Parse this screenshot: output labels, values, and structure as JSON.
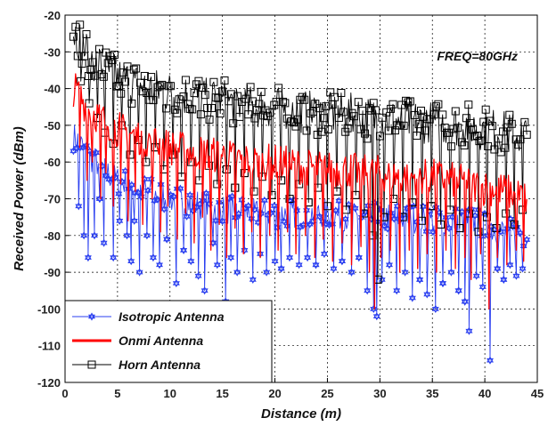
{
  "chart_data": {
    "type": "line",
    "title": "",
    "annotation": "FREQ=80GHz",
    "xlabel": "Distance (m)",
    "ylabel": "Received Power (dBm)",
    "xlim": [
      0,
      45
    ],
    "ylim": [
      -120,
      -20
    ],
    "xticks": [
      0,
      5,
      10,
      15,
      20,
      25,
      30,
      35,
      40,
      45
    ],
    "yticks": [
      -20,
      -30,
      -40,
      -50,
      -60,
      -70,
      -80,
      -90,
      -100,
      -110,
      -120
    ],
    "grid": "dashed",
    "legend_position": "bottom-left",
    "series": [
      {
        "name": "Isotropic Antenna",
        "color": "#2a3ff0",
        "marker": "hexagram",
        "x": [
          0.8,
          1.5,
          2.0,
          3.0,
          4.0,
          5.0,
          6.0,
          7.0,
          8.0,
          10.0,
          12.0,
          14.0,
          15.0,
          16.0,
          18.0,
          20.0,
          22.0,
          25.0,
          27.0,
          29.0,
          30.0,
          32.0,
          35.0,
          37.0,
          38.5,
          40.0,
          40.5,
          42.0,
          44.0
        ],
        "y": [
          -53,
          -55,
          -58,
          -60,
          -63,
          -65,
          -66,
          -67,
          -68,
          -70,
          -71,
          -72,
          -73,
          -73,
          -74,
          -74,
          -74,
          -74,
          -75,
          -75,
          -75,
          -75,
          -76,
          -76,
          -76,
          -77,
          -78,
          -79,
          -80
        ],
        "dips": [
          [
            1.3,
            -72
          ],
          [
            1.8,
            -80
          ],
          [
            2.2,
            -86
          ],
          [
            2.8,
            -80
          ],
          [
            3.3,
            -70
          ],
          [
            3.7,
            -82
          ],
          [
            4.6,
            -86
          ],
          [
            5.2,
            -76
          ],
          [
            5.9,
            -80
          ],
          [
            6.3,
            -87
          ],
          [
            6.6,
            -76
          ],
          [
            7.1,
            -90
          ],
          [
            7.8,
            -80
          ],
          [
            8.4,
            -86
          ],
          [
            9.0,
            -88
          ],
          [
            9.7,
            -81
          ],
          [
            10.6,
            -93
          ],
          [
            11.3,
            -84
          ],
          [
            12.0,
            -87
          ],
          [
            12.7,
            -91
          ],
          [
            13.3,
            -95
          ],
          [
            14.1,
            -82
          ],
          [
            14.5,
            -88
          ],
          [
            15.3,
            -98
          ],
          [
            15.8,
            -86
          ],
          [
            16.4,
            -90
          ],
          [
            17.1,
            -84
          ],
          [
            17.9,
            -92
          ],
          [
            18.6,
            -85
          ],
          [
            19.2,
            -90
          ],
          [
            20.0,
            -87
          ],
          [
            20.6,
            -89
          ],
          [
            21.4,
            -86
          ],
          [
            22.3,
            -88
          ],
          [
            23.1,
            -86
          ],
          [
            23.9,
            -88
          ],
          [
            24.7,
            -85
          ],
          [
            25.6,
            -89
          ],
          [
            26.4,
            -87
          ],
          [
            27.3,
            -90
          ],
          [
            28.0,
            -86
          ],
          [
            28.8,
            -95
          ],
          [
            29.4,
            -100
          ],
          [
            29.7,
            -102
          ],
          [
            30.2,
            -92
          ],
          [
            30.9,
            -88
          ],
          [
            31.6,
            -95
          ],
          [
            32.4,
            -90
          ],
          [
            33.1,
            -97
          ],
          [
            33.8,
            -92
          ],
          [
            34.5,
            -96
          ],
          [
            35.3,
            -100
          ],
          [
            36.0,
            -93
          ],
          [
            36.8,
            -90
          ],
          [
            37.5,
            -95
          ],
          [
            38.1,
            -98
          ],
          [
            38.5,
            -106
          ],
          [
            39.2,
            -91
          ],
          [
            39.8,
            -94
          ],
          [
            40.5,
            -114
          ],
          [
            41.2,
            -89
          ],
          [
            41.8,
            -92
          ],
          [
            42.4,
            -88
          ],
          [
            43.0,
            -91
          ],
          [
            43.6,
            -89
          ]
        ]
      },
      {
        "name": "Onmi Antenna",
        "color": "#ff0000",
        "marker": "none",
        "x": [
          0.8,
          1.5,
          2.0,
          3.0,
          4.0,
          5.0,
          6.0,
          7.0,
          8.0,
          10.0,
          12.0,
          14.0,
          15.0,
          16.0,
          18.0,
          20.0,
          22.0,
          25.0,
          27.0,
          29.0,
          30.0,
          32.0,
          35.0,
          37.0,
          38.5,
          40.0,
          40.5,
          42.0,
          44.0
        ],
        "y": [
          -40,
          -42,
          -45,
          -47,
          -49,
          -51,
          -52,
          -53,
          -54,
          -56,
          -57,
          -58,
          -58,
          -59,
          -60,
          -60,
          -61,
          -62,
          -62,
          -63,
          -63,
          -64,
          -64,
          -65,
          -66,
          -67,
          -67,
          -68,
          -70
        ],
        "dips": [
          [
            1.4,
            -56
          ],
          [
            2.1,
            -65
          ],
          [
            2.6,
            -60
          ],
          [
            3.4,
            -70
          ],
          [
            3.9,
            -63
          ],
          [
            4.6,
            -72
          ],
          [
            5.3,
            -66
          ],
          [
            6.0,
            -76
          ],
          [
            6.7,
            -68
          ],
          [
            7.4,
            -77
          ],
          [
            8.3,
            -70
          ],
          [
            9.1,
            -79
          ],
          [
            9.8,
            -72
          ],
          [
            10.7,
            -81
          ],
          [
            11.5,
            -74
          ],
          [
            12.3,
            -82
          ],
          [
            13.1,
            -75
          ],
          [
            13.9,
            -84
          ],
          [
            14.7,
            -77
          ],
          [
            15.4,
            -86
          ],
          [
            16.2,
            -78
          ],
          [
            17.0,
            -85
          ],
          [
            17.8,
            -79
          ],
          [
            18.6,
            -86
          ],
          [
            19.5,
            -80
          ],
          [
            20.3,
            -84
          ],
          [
            21.2,
            -79
          ],
          [
            22.0,
            -85
          ],
          [
            22.9,
            -80
          ],
          [
            23.8,
            -86
          ],
          [
            24.6,
            -81
          ],
          [
            25.5,
            -87
          ],
          [
            26.4,
            -82
          ],
          [
            27.3,
            -88
          ],
          [
            28.2,
            -83
          ],
          [
            29.0,
            -90
          ],
          [
            29.5,
            -100
          ],
          [
            30.1,
            -86
          ],
          [
            31.0,
            -84
          ],
          [
            31.9,
            -90
          ],
          [
            32.8,
            -84
          ],
          [
            33.6,
            -89
          ],
          [
            34.5,
            -85
          ],
          [
            35.4,
            -90
          ],
          [
            36.3,
            -84
          ],
          [
            37.2,
            -89
          ],
          [
            38.1,
            -86
          ],
          [
            38.7,
            -92
          ],
          [
            39.6,
            -85
          ],
          [
            40.4,
            -100
          ],
          [
            41.2,
            -86
          ],
          [
            42.1,
            -88
          ],
          [
            43.0,
            -84
          ],
          [
            43.7,
            -87
          ]
        ]
      },
      {
        "name": "Horn Antenna",
        "color": "#000000",
        "marker": "square",
        "x": [
          0.8,
          1.5,
          2.0,
          3.0,
          4.0,
          5.0,
          6.0,
          7.0,
          8.0,
          10.0,
          12.0,
          14.0,
          15.0,
          16.0,
          18.0,
          20.0,
          22.0,
          25.0,
          27.0,
          29.0,
          30.0,
          32.0,
          35.0,
          37.0,
          38.5,
          40.0,
          40.5,
          42.0,
          44.0
        ],
        "y": [
          -24,
          -27,
          -30,
          -33,
          -35,
          -37,
          -38,
          -39,
          -40,
          -41,
          -42,
          -43,
          -43,
          -44,
          -45,
          -45,
          -46,
          -47,
          -47,
          -48,
          -48,
          -49,
          -49,
          -50,
          -50,
          -51,
          -51,
          -52,
          -53
        ],
        "dips": [
          [
            1.5,
            -38
          ],
          [
            2.3,
            -44
          ],
          [
            3.1,
            -48
          ],
          [
            3.8,
            -52
          ],
          [
            4.6,
            -55
          ],
          [
            5.4,
            -50
          ],
          [
            6.2,
            -58
          ],
          [
            7.0,
            -54
          ],
          [
            7.7,
            -60
          ],
          [
            8.6,
            -56
          ],
          [
            9.4,
            -62
          ],
          [
            10.3,
            -58
          ],
          [
            11.1,
            -64
          ],
          [
            12.0,
            -60
          ],
          [
            12.8,
            -65
          ],
          [
            13.7,
            -61
          ],
          [
            14.5,
            -66
          ],
          [
            15.4,
            -62
          ],
          [
            16.2,
            -67
          ],
          [
            17.1,
            -63
          ],
          [
            18.0,
            -68
          ],
          [
            18.8,
            -64
          ],
          [
            19.7,
            -69
          ],
          [
            20.6,
            -65
          ],
          [
            21.4,
            -70
          ],
          [
            22.3,
            -66
          ],
          [
            23.2,
            -71
          ],
          [
            24.1,
            -67
          ],
          [
            25.0,
            -72
          ],
          [
            25.9,
            -68
          ],
          [
            26.8,
            -73
          ],
          [
            27.7,
            -69
          ],
          [
            28.5,
            -74
          ],
          [
            29.3,
            -80
          ],
          [
            29.8,
            -92
          ],
          [
            30.4,
            -75
          ],
          [
            31.3,
            -70
          ],
          [
            32.2,
            -75
          ],
          [
            33.1,
            -71
          ],
          [
            34.0,
            -76
          ],
          [
            34.9,
            -72
          ],
          [
            35.8,
            -77
          ],
          [
            36.7,
            -73
          ],
          [
            37.6,
            -78
          ],
          [
            38.5,
            -74
          ],
          [
            39.4,
            -79
          ],
          [
            40.2,
            -75
          ],
          [
            41.1,
            -78
          ],
          [
            42.0,
            -74
          ],
          [
            42.8,
            -77
          ],
          [
            43.6,
            -73
          ]
        ]
      }
    ]
  }
}
